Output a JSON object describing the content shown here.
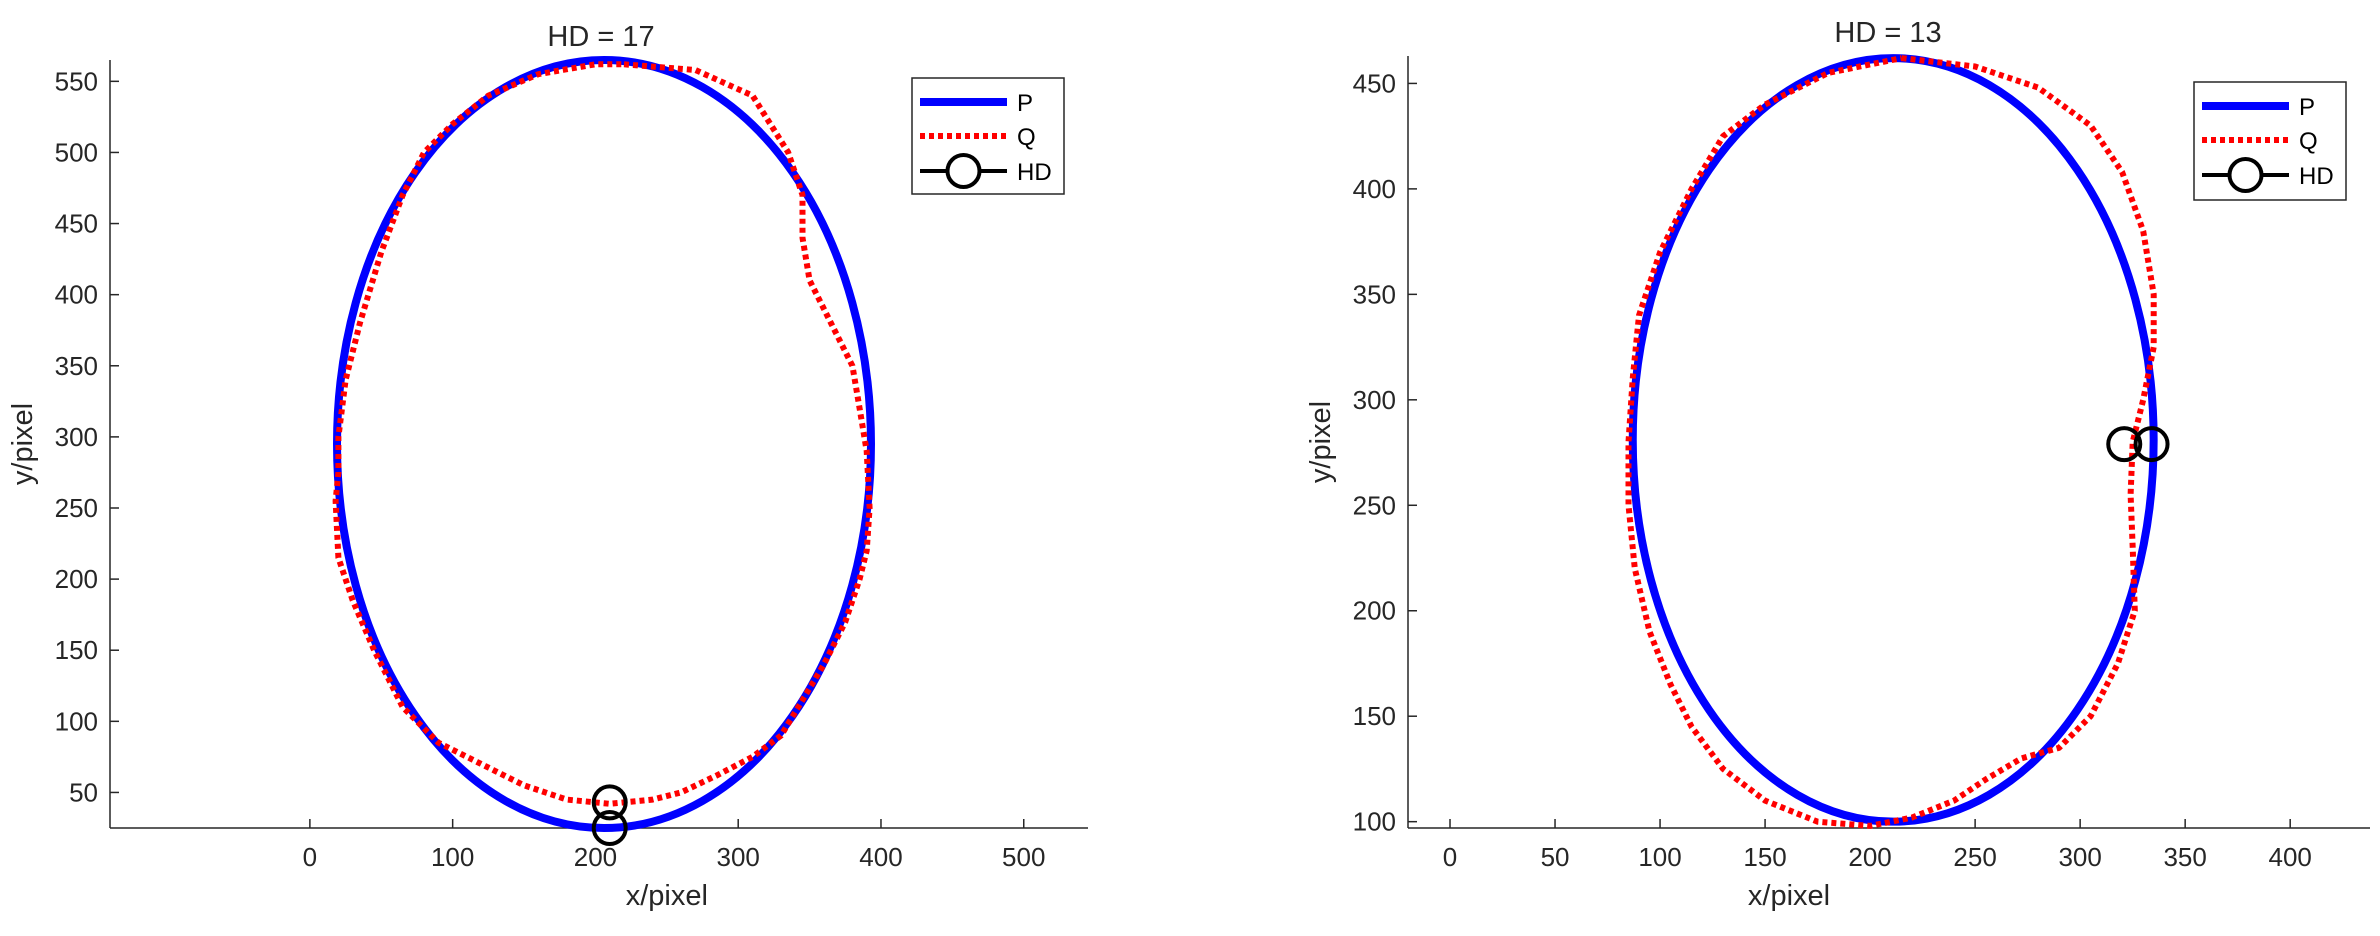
{
  "chart_data": [
    {
      "type": "line",
      "title": "HD = 17",
      "xlabel": "x/pixel",
      "ylabel": "y/pixel",
      "xlim": [
        -140,
        545
      ],
      "ylim": [
        25,
        565
      ],
      "xticks": [
        0,
        100,
        200,
        300,
        400,
        500
      ],
      "yticks": [
        50,
        100,
        150,
        200,
        250,
        300,
        350,
        400,
        450,
        500,
        550
      ],
      "grid": false,
      "legend": {
        "placement": "top-right",
        "entries": [
          "P",
          "Q",
          "HD"
        ]
      },
      "series": [
        {
          "name": "P",
          "style": "solid",
          "color": "#0000ff",
          "ellipse": {
            "cx": 206,
            "cy": 295,
            "rx": 187,
            "ry": 270
          }
        },
        {
          "name": "Q",
          "style": "dotted",
          "color": "#ff0000",
          "points": [
            [
              220,
              562
            ],
            [
              270,
              558
            ],
            [
              310,
              540
            ],
            [
              335,
              500
            ],
            [
              345,
              470
            ],
            [
              345,
              440
            ],
            [
              350,
              410
            ],
            [
              365,
              380
            ],
            [
              380,
              350
            ],
            [
              385,
              320
            ],
            [
              390,
              290
            ],
            [
              392,
              250
            ],
            [
              390,
              220
            ],
            [
              385,
              200
            ],
            [
              375,
              170
            ],
            [
              360,
              140
            ],
            [
              345,
              115
            ],
            [
              330,
              90
            ],
            [
              310,
              75
            ],
            [
              285,
              62
            ],
            [
              260,
              50
            ],
            [
              240,
              45
            ],
            [
              210,
              42
            ],
            [
              180,
              45
            ],
            [
              150,
              55
            ],
            [
              120,
              70
            ],
            [
              90,
              85
            ],
            [
              65,
              110
            ],
            [
              45,
              150
            ],
            [
              30,
              185
            ],
            [
              20,
              215
            ],
            [
              18,
              255
            ],
            [
              20,
              275
            ],
            [
              20,
              300
            ],
            [
              25,
              340
            ],
            [
              35,
              380
            ],
            [
              50,
              430
            ],
            [
              65,
              470
            ],
            [
              80,
              500
            ],
            [
              100,
              520
            ],
            [
              125,
              540
            ],
            [
              160,
              555
            ],
            [
              200,
              562
            ],
            [
              220,
              562
            ]
          ]
        },
        {
          "name": "HD",
          "style": "circle-marker",
          "color": "#000000",
          "points": [
            [
              210,
              43
            ],
            [
              210,
              25
            ]
          ]
        }
      ]
    },
    {
      "type": "line",
      "title": "HD = 13",
      "xlabel": "x/pixel",
      "ylabel": "y/pixel",
      "xlim": [
        -20,
        438
      ],
      "ylim": [
        97,
        463
      ],
      "xticks": [
        0,
        50,
        100,
        150,
        200,
        250,
        300,
        350,
        400
      ],
      "yticks": [
        100,
        150,
        200,
        250,
        300,
        350,
        400,
        450
      ],
      "grid": false,
      "legend": {
        "placement": "top-right",
        "entries": [
          "P",
          "Q",
          "HD"
        ]
      },
      "series": [
        {
          "name": "P",
          "style": "solid",
          "color": "#0000ff",
          "ellipse": {
            "cx": 211,
            "cy": 281,
            "rx": 124,
            "ry": 181
          }
        },
        {
          "name": "Q",
          "style": "dotted",
          "color": "#ff0000",
          "points": [
            [
              215,
              462
            ],
            [
              250,
              458
            ],
            [
              280,
              448
            ],
            [
              305,
              430
            ],
            [
              320,
              408
            ],
            [
              330,
              380
            ],
            [
              335,
              350
            ],
            [
              335,
              325
            ],
            [
              330,
              300
            ],
            [
              325,
              280
            ],
            [
              324,
              255
            ],
            [
              325,
              230
            ],
            [
              326,
              200
            ],
            [
              318,
              175
            ],
            [
              305,
              150
            ],
            [
              290,
              135
            ],
            [
              272,
              130
            ],
            [
              255,
              120
            ],
            [
              240,
              110
            ],
            [
              220,
              102
            ],
            [
              200,
              98
            ],
            [
              175,
              100
            ],
            [
              150,
              110
            ],
            [
              130,
              125
            ],
            [
              115,
              145
            ],
            [
              105,
              165
            ],
            [
              95,
              190
            ],
            [
              88,
              220
            ],
            [
              85,
              250
            ],
            [
              85,
              280
            ],
            [
              87,
              310
            ],
            [
              90,
              340
            ],
            [
              100,
              370
            ],
            [
              115,
              400
            ],
            [
              130,
              425
            ],
            [
              150,
              440
            ],
            [
              180,
              455
            ],
            [
              215,
              462
            ]
          ]
        },
        {
          "name": "HD",
          "style": "circle-marker",
          "color": "#000000",
          "points": [
            [
              321,
              279
            ],
            [
              334,
              279
            ]
          ]
        }
      ]
    }
  ]
}
